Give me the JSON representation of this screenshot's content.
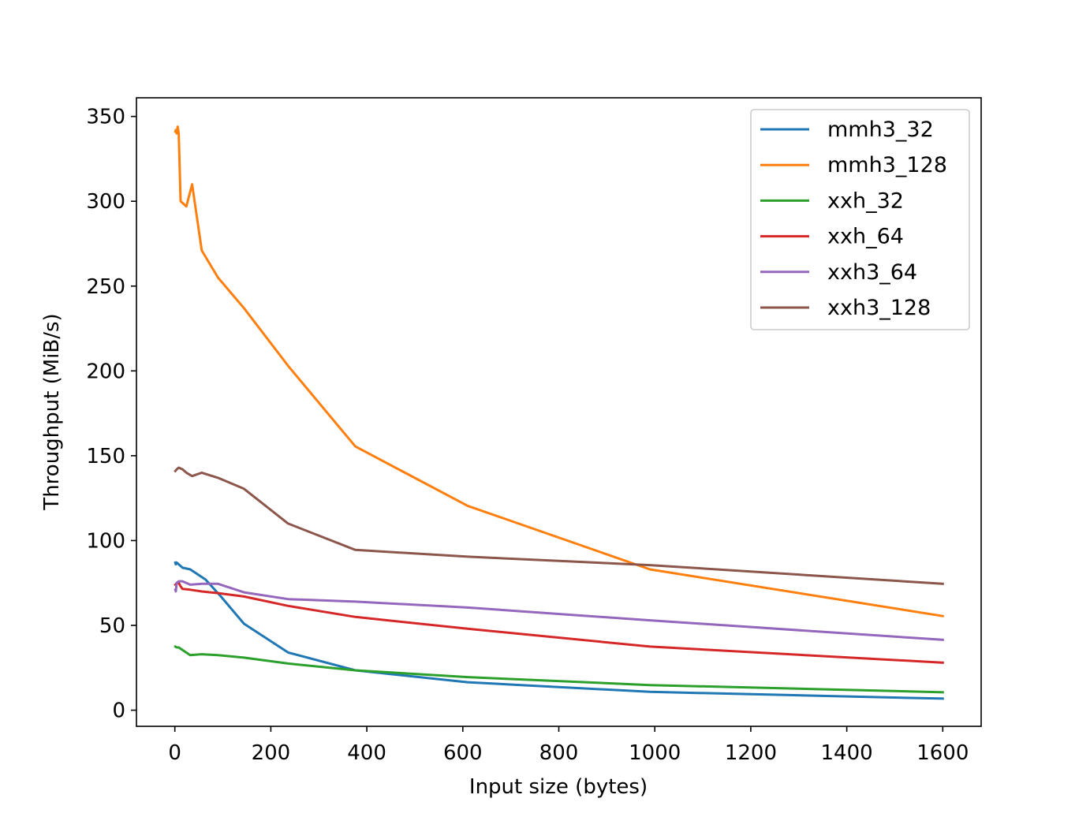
{
  "chart_data": {
    "type": "line",
    "title": "",
    "xlabel": "Input size (bytes)",
    "ylabel": "Throughput (MiB/s)",
    "xlim": [
      -80,
      1680
    ],
    "ylim": [
      -9.5,
      361
    ],
    "xticks": [
      0,
      200,
      400,
      600,
      800,
      1000,
      1200,
      1400,
      1600
    ],
    "yticks": [
      0,
      50,
      100,
      150,
      200,
      250,
      300,
      350
    ],
    "grid": false,
    "legend_position": "upper right",
    "series": [
      {
        "name": "mmh3_32",
        "color": "#1f77b4",
        "x": [
          1,
          2,
          4,
          8,
          16,
          32,
          64,
          96,
          144,
          236,
          376,
          610,
          990,
          1600
        ],
        "y": [
          87,
          86,
          87,
          86,
          84,
          83,
          77,
          67,
          51,
          34,
          23.5,
          16.5,
          10.8,
          6.8
        ]
      },
      {
        "name": "mmh3_128",
        "color": "#ff7f0e",
        "x": [
          1,
          2,
          4,
          6,
          8,
          12,
          16,
          24,
          36,
          56,
          90,
          144,
          236,
          376,
          610,
          990,
          1600
        ],
        "y": [
          341,
          342,
          340,
          344,
          340,
          300,
          299,
          297,
          310,
          271,
          255,
          237,
          203,
          155.5,
          120.5,
          83,
          55.5
        ]
      },
      {
        "name": "xxh_32",
        "color": "#2ca02c",
        "x": [
          1,
          4,
          8,
          16,
          32,
          56,
          90,
          144,
          236,
          376,
          610,
          990,
          1600
        ],
        "y": [
          37.5,
          37,
          37,
          35.5,
          32.5,
          33,
          32.5,
          31,
          27.5,
          23.5,
          19.5,
          14.8,
          10.6
        ]
      },
      {
        "name": "xxh_64",
        "color": "#d62728",
        "x": [
          1,
          4,
          8,
          12,
          16,
          32,
          56,
          90,
          144,
          236,
          376,
          610,
          990,
          1600
        ],
        "y": [
          74,
          75,
          75,
          73,
          71.5,
          71,
          70,
          69,
          67,
          61.5,
          55,
          48,
          37.5,
          28
        ]
      },
      {
        "name": "xxh3_64",
        "color": "#9467bd",
        "x": [
          1,
          2,
          4,
          8,
          12,
          16,
          32,
          56,
          90,
          144,
          236,
          376,
          610,
          990,
          1600
        ],
        "y": [
          71,
          70,
          75,
          76,
          76,
          76,
          74,
          74.5,
          74.5,
          69.5,
          65.5,
          64,
          60.5,
          53,
          41.5
        ]
      },
      {
        "name": "xxh3_128",
        "color": "#8c564b",
        "x": [
          1,
          4,
          8,
          16,
          24,
          36,
          56,
          90,
          144,
          236,
          376,
          610,
          990,
          1600
        ],
        "y": [
          141,
          142,
          143,
          142,
          140,
          138,
          140,
          137,
          130.5,
          110,
          94.5,
          90.5,
          85.5,
          74.5
        ]
      }
    ]
  }
}
